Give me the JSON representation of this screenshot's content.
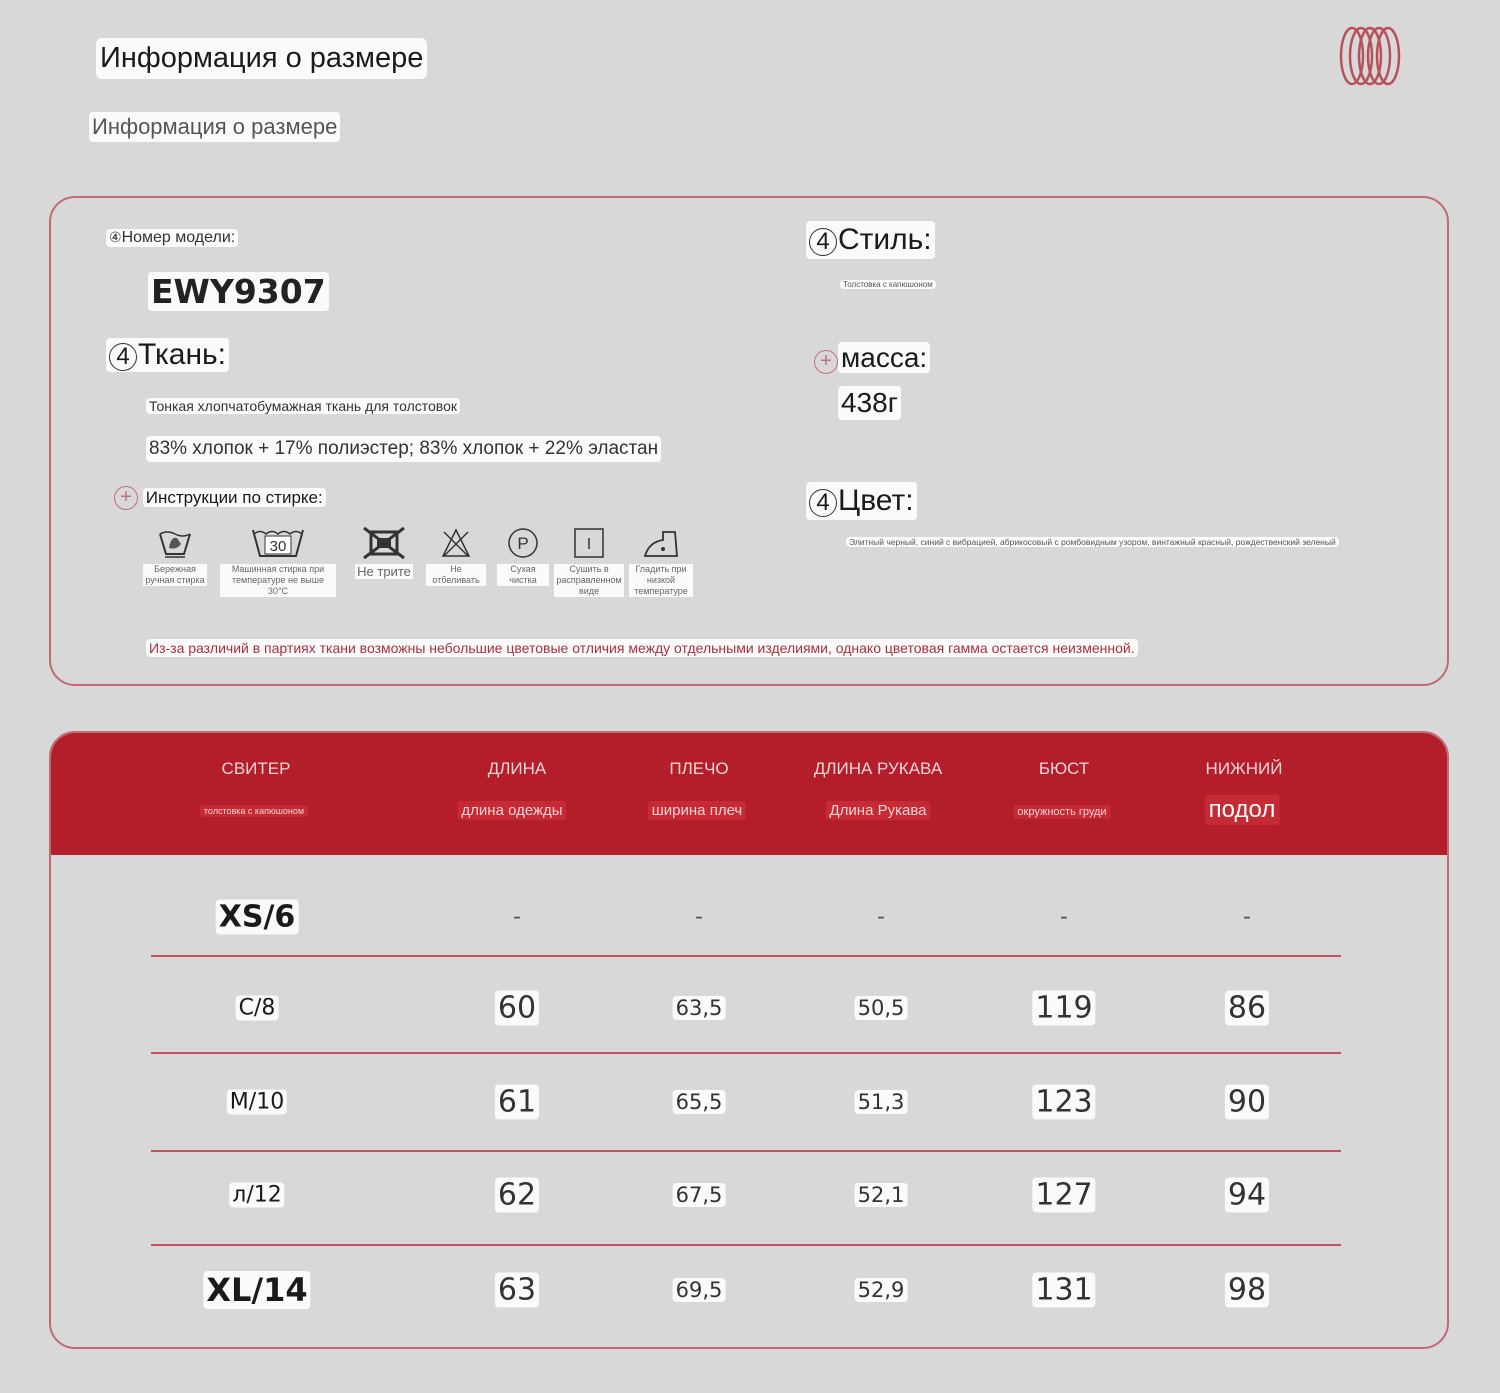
{
  "header": {
    "title": "Информация о размере",
    "subtitle": "Информация о размере",
    "logo": "coil-rings-logo"
  },
  "info": {
    "model_label": "Номер модели:",
    "model_value": "EWY9307",
    "fabric_label": "Ткань:",
    "fabric_desc": "Тонкая хлопчатобумажная ткань для толстовок",
    "fabric_composition": "83% хлопок + 17% полиэстер; 83% хлопок + 22% эластан",
    "care_label": "Инструкции по стирке:",
    "care_icons": [
      {
        "icon": "hand-wash-icon",
        "label": "Бережная ручная стирка"
      },
      {
        "icon": "wash-30-icon",
        "symbol": "30",
        "label": "Машинная стирка при температуре не выше 30°C"
      },
      {
        "icon": "do-not-tumble-icon",
        "label": "Не трите"
      },
      {
        "icon": "do-not-bleach-icon",
        "label": "Не отбеливать"
      },
      {
        "icon": "dry-clean-p-icon",
        "symbol": "P",
        "label": "Сухая чистка"
      },
      {
        "icon": "line-dry-icon",
        "symbol": "I",
        "label": "Сушить в расправленном виде"
      },
      {
        "icon": "iron-low-icon",
        "label": "Гладить при низкой температуре"
      }
    ],
    "style_label": "Стиль:",
    "style_value": "Толстовка с капюшоном",
    "weight_label": "масса:",
    "weight_value": "438г",
    "color_label": "Цвет:",
    "color_value": "Элитный черный, синий с вибрацией, абрикосовый с ромбовидным узором, винтажный красный, рождественский зеленый",
    "note": "Из-за различий в партиях ткани возможны небольшие цветовые отличия между отдельными изделиями, однако цветовая гамма остается неизменной."
  },
  "table": {
    "columns": [
      {
        "title": "СВИТЕР",
        "sub": "толстовка с капюшоном"
      },
      {
        "title": "ДЛИНА",
        "sub": "длина одежды"
      },
      {
        "title": "ПЛЕЧО",
        "sub": "ширина плеч"
      },
      {
        "title": "ДЛИНА РУКАВА",
        "sub": "Длина Рукава"
      },
      {
        "title": "БЮСТ",
        "sub": "окружность груди"
      },
      {
        "title": "НИЖНИЙ",
        "sub": "подол"
      }
    ],
    "rows": [
      [
        "XS/6",
        "-",
        "-",
        "-",
        "-",
        "-"
      ],
      [
        "С/8",
        "60",
        "63,5",
        "50,5",
        "119",
        "86"
      ],
      [
        "М/10",
        "61",
        "65,5",
        "51,3",
        "123",
        "90"
      ],
      [
        "л/12",
        "62",
        "67,5",
        "52,1",
        "127",
        "94"
      ],
      [
        "XL/14",
        "63",
        "69,5",
        "52,9",
        "131",
        "98"
      ]
    ]
  },
  "colors": {
    "accent": "#b31e2a",
    "border": "#c06a72",
    "background": "#d8d8d8"
  }
}
